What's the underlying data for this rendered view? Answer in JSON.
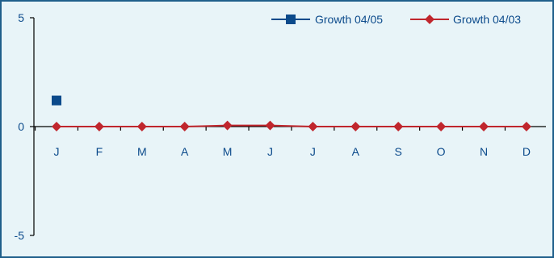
{
  "chart_data": {
    "type": "line",
    "categories": [
      "J",
      "F",
      "M",
      "A",
      "M",
      "J",
      "J",
      "A",
      "S",
      "O",
      "N",
      "D"
    ],
    "series": [
      {
        "name": "Growth 04/05",
        "values": [
          1.2,
          null,
          null,
          null,
          null,
          null,
          null,
          null,
          null,
          null,
          null,
          null
        ],
        "color": "#0b4a8b",
        "marker": "square"
      },
      {
        "name": "Growth 04/03",
        "values": [
          0,
          0,
          0,
          0,
          0.05,
          0.05,
          0,
          0,
          0,
          0,
          0,
          0
        ],
        "color": "#c0262d",
        "marker": "diamond"
      }
    ],
    "ylim": [
      -5,
      5
    ],
    "yticks": [
      "-5",
      "0",
      "5"
    ],
    "legend_position": "top-right",
    "grid": false,
    "background_color": "#e8f4f8",
    "border_color": "#1f5f8b",
    "axis_color": "#000000",
    "label_color": "#0b4a8b"
  }
}
